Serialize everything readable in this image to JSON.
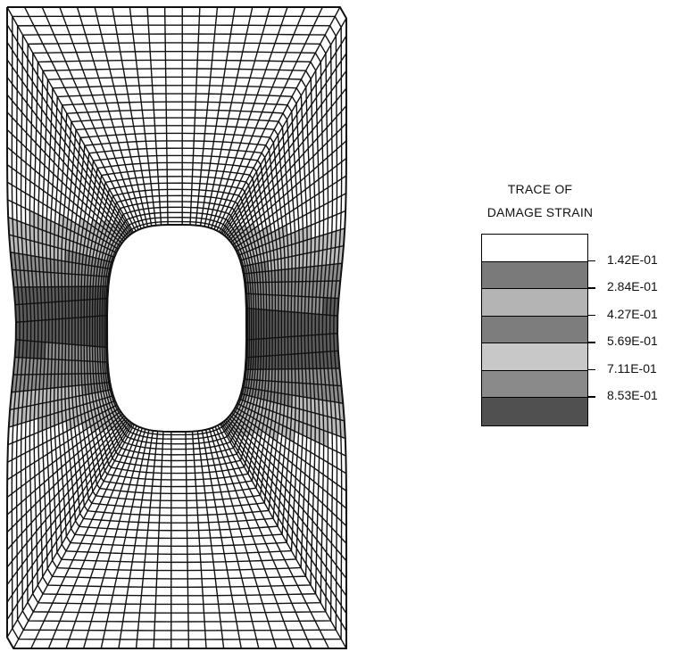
{
  "figure": {
    "legend": {
      "title_line1": "TRACE OF",
      "title_line2": "DAMAGE STRAIN",
      "band_colors": [
        "#ffffff",
        "#7a7a7a",
        "#b4b4b4",
        "#7d7d7d",
        "#c8c8c8",
        "#8a8a8a",
        "#505050"
      ],
      "labels": [
        "1.42E-01",
        "2.84E-01",
        "4.27E-01",
        "5.69E-01",
        "7.11E-01",
        "8.53E-01"
      ]
    },
    "colors": {
      "mesh_line": "#111111",
      "damage_dark": "#5c5c5c",
      "damage_mid": "#8d8d8d",
      "damage_light": "#bdbdbd"
    }
  }
}
